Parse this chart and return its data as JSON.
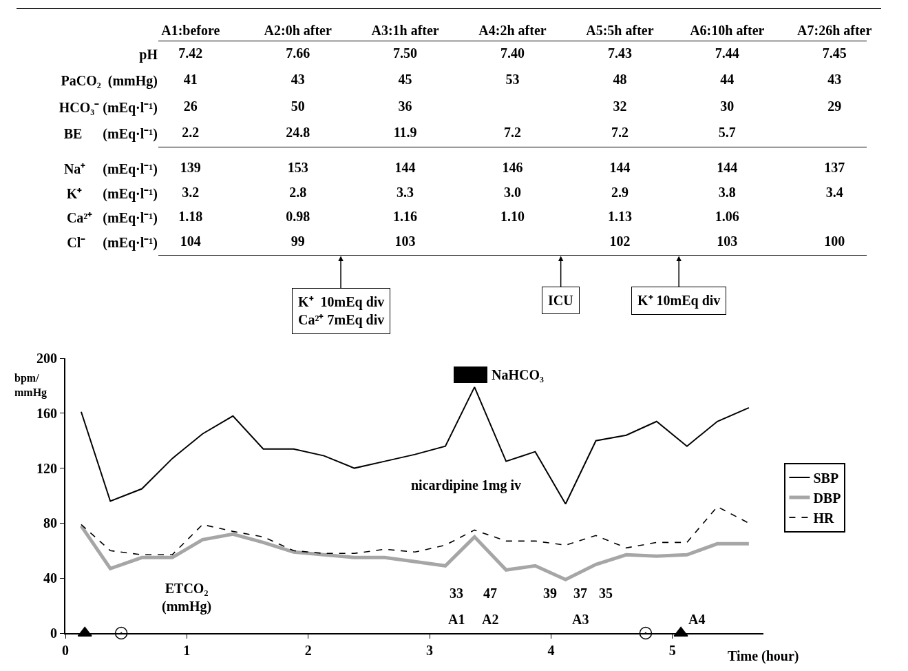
{
  "chart_data": [
    {
      "type": "heatmap",
      "categories": [
        "A1:before",
        "A2:0h after",
        "A3:1h after",
        "A4:2h after",
        "A5:5h after",
        "A6:10h after",
        "A7:26h after"
      ],
      "y_categories": [
        "pH",
        "PaCO₂  (mmHg)",
        "HCO₃⁻ (mEq·l⁻¹)",
        "BE      (mEq·l⁻¹)"
      ],
      "cells": [
        [
          7.42,
          7.66,
          7.5,
          7.4,
          7.43,
          7.44,
          7.45
        ],
        [
          41,
          43,
          45,
          53,
          48,
          44,
          43
        ],
        [
          26,
          50,
          36,
          null,
          32,
          30,
          29
        ],
        [
          2.2,
          24.8,
          11.9,
          7.2,
          7.2,
          5.7,
          null
        ]
      ],
      "cell_labels": [
        [
          "7.42",
          "7.66",
          "7.50",
          "7.40",
          "7.43",
          "7.44",
          "7.45"
        ],
        [
          "41",
          "43",
          "45",
          "53",
          "48",
          "44",
          "43"
        ],
        [
          "26",
          "50",
          "36",
          null,
          "32",
          "30",
          "29"
        ],
        [
          "2.2",
          "24.8",
          "11.9",
          "7.2",
          "7.2",
          "5.7",
          null
        ]
      ]
    },
    {
      "type": "heatmap",
      "categories": [
        null,
        null,
        null,
        null,
        null,
        null,
        null
      ],
      "tick_labels": "y",
      "y_categories": [
        "Na⁺     (mEq·l⁻¹)",
        "K⁺      (mEq·l⁻¹)",
        "Ca²⁺   (mEq·l⁻¹)",
        "Cl⁻     (mEq·l⁻¹)"
      ],
      "cells": [
        [
          139,
          153,
          144,
          146,
          144,
          144,
          137
        ],
        [
          3.2,
          2.8,
          3.3,
          3.0,
          2.9,
          3.8,
          3.4
        ],
        [
          1.18,
          0.98,
          1.16,
          1.1,
          1.13,
          1.06,
          null
        ],
        [
          104,
          99,
          103,
          null,
          102,
          103,
          100
        ]
      ],
      "cell_labels": [
        [
          "139",
          "153",
          "144",
          "146",
          "144",
          "144",
          "137"
        ],
        [
          "3.2",
          "2.8",
          "3.3",
          "3.0",
          "2.9",
          "3.8",
          "3.4"
        ],
        [
          "1.18",
          "0.98",
          "1.16",
          "1.10",
          "1.13",
          "1.06",
          null
        ],
        [
          "104",
          "99",
          "103",
          null,
          "102",
          "103",
          "100"
        ]
      ],
      "annotations": [
        "K⁺  10mEq div\nCa²⁺ 7mEq div",
        "ICU",
        "K⁺ 10mEq div"
      ]
    },
    {
      "type": "line",
      "ylabel": "bpm/\nmmHg",
      "xlabel": "Time (hour)",
      "x": [
        0.13,
        0.37,
        0.63,
        0.88,
        1.13,
        1.38,
        1.63,
        1.88,
        2.13,
        2.38,
        2.63,
        2.88,
        3.13,
        3.37,
        3.63,
        3.87,
        4.12,
        4.37,
        4.62,
        4.87,
        5.12,
        5.37,
        5.63
      ],
      "series": [
        {
          "name": "SBP",
          "color": "#000000",
          "line_style": "solid",
          "values": [
            161,
            96,
            105,
            127,
            145,
            158,
            134,
            134,
            129,
            120,
            125,
            130,
            136,
            179,
            125,
            132,
            94,
            140,
            144,
            154,
            136,
            154,
            164
          ]
        },
        {
          "name": "DBP",
          "color": "#a6a6a6",
          "line_style": "solid",
          "values": [
            78,
            47,
            55,
            55,
            68,
            72,
            66,
            59,
            57,
            55,
            55,
            52,
            49,
            70,
            46,
            49,
            39,
            50,
            57,
            56,
            57,
            65,
            65
          ]
        },
        {
          "name": "HR",
          "color": "#000000",
          "line_style": "dashed",
          "values": [
            79,
            60,
            57,
            57,
            79,
            74,
            70,
            60,
            58,
            58,
            61,
            59,
            64,
            75,
            67,
            67,
            64,
            71,
            62,
            66,
            66,
            92,
            80
          ]
        },
        {
          "type": "scatter",
          "color": "#000000",
          "marker": "triangle",
          "x": [
            0.16,
            5.07
          ],
          "values": [
            0,
            0
          ]
        },
        {
          "type": "scatter",
          "color": "#000000",
          "marker": "circle",
          "x": [
            0.46,
            4.78
          ],
          "values": [
            0,
            0
          ]
        }
      ],
      "xlim": [
        0,
        5.75
      ],
      "xticks": [
        0,
        1,
        2,
        3,
        4,
        5
      ],
      "ylim": [
        0,
        200
      ],
      "yticks": [
        0,
        40,
        80,
        120,
        160,
        200
      ],
      "grid": false,
      "legend": "right",
      "marker": "none",
      "annotations": [
        "NaHCO₃",
        "nicardipine 1mg iv",
        "ETCO₂\n(mmHg)",
        "33",
        "47",
        "39",
        "37",
        "35",
        "A1",
        "A2",
        "A3",
        "A4"
      ]
    }
  ]
}
